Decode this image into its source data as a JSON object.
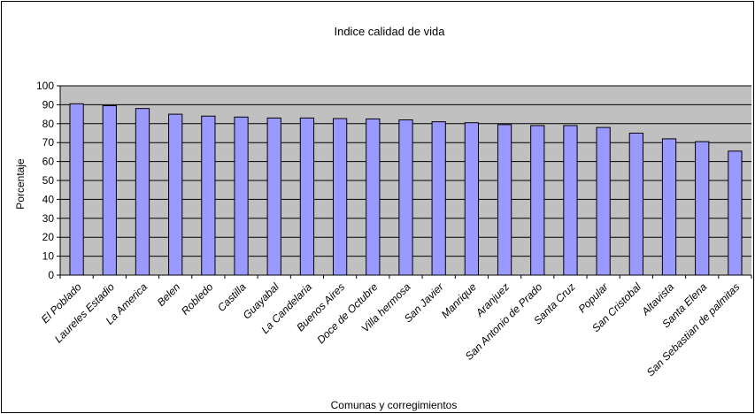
{
  "chart_data": {
    "type": "bar",
    "title": "Indice calidad de vida",
    "xlabel": "Comunas y corregimientos",
    "ylabel": "Porcentaje",
    "ylim": [
      0,
      100
    ],
    "yticks": [
      0,
      10,
      20,
      30,
      40,
      50,
      60,
      70,
      80,
      90,
      100
    ],
    "grid": true,
    "legend": "none",
    "colors": {
      "bar_fill": "#9999ff",
      "plot_background": "#c0c0c0",
      "gridline": "#000000"
    },
    "categories": [
      "El Poblado",
      "Laureles Estadio",
      "La America",
      "Belen",
      "Robledo",
      "Castilla",
      "Guayabal",
      "La Candelaria",
      "Buenos Aires",
      "Doce de Octubre",
      "Villa hermosa",
      "San Javier",
      "Manrique",
      "Aranjuez",
      "San Antonio de Prado",
      "Santa Cruz",
      "Popular",
      "San Cristobal",
      "Altavista",
      "Santa Elena",
      "San Sebastian de palmitas"
    ],
    "values": [
      90.5,
      89.5,
      88,
      85,
      84,
      83.5,
      83,
      83,
      82.7,
      82.5,
      82,
      81,
      80.5,
      79.5,
      79,
      79,
      78,
      75,
      72,
      70.5,
      65.5
    ]
  }
}
